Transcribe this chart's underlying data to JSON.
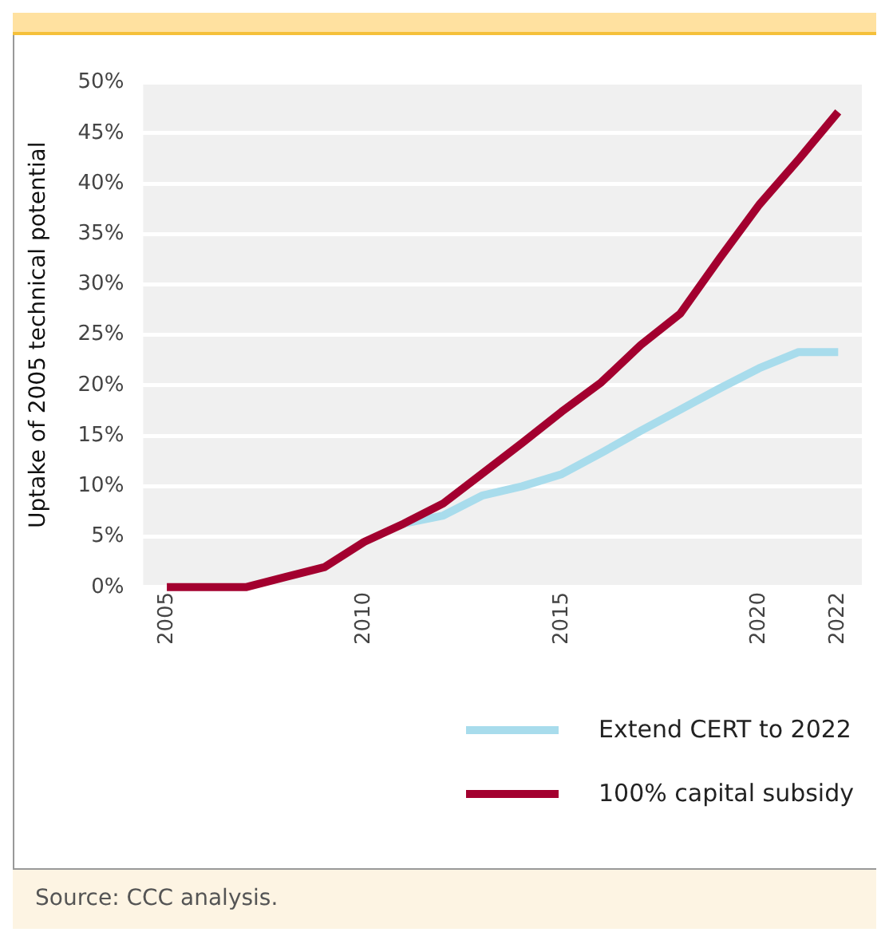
{
  "chart_data": {
    "type": "line",
    "ylabel": "Uptake of 2005 technical potential",
    "xlim": [
      2004.4,
      2022.6
    ],
    "xticks": [
      2005,
      2010,
      2015,
      2020,
      2022
    ],
    "ylim": [
      0,
      50
    ],
    "yticks": [
      {
        "value": 0,
        "label": "0%"
      },
      {
        "value": 5,
        "label": "5%"
      },
      {
        "value": 10,
        "label": "10%"
      },
      {
        "value": 15,
        "label": "15%"
      },
      {
        "value": 20,
        "label": "20%"
      },
      {
        "value": 25,
        "label": "25%"
      },
      {
        "value": 30,
        "label": "30%"
      },
      {
        "value": 35,
        "label": "35%"
      },
      {
        "value": 40,
        "label": "40%"
      },
      {
        "value": 45,
        "label": "45%"
      },
      {
        "value": 50,
        "label": "50%"
      }
    ],
    "grid": "y",
    "legend": "bottom right",
    "line_style": "solid",
    "marker": "none",
    "x": [
      2005,
      2006,
      2007,
      2008,
      2009,
      2010,
      2011,
      2012,
      2013,
      2014,
      2015,
      2016,
      2017,
      2018,
      2019,
      2020,
      2021,
      2022
    ],
    "series": [
      {
        "name": "Extend CERT to 2022",
        "color": "#a8dcec",
        "values": [
          null,
          null,
          null,
          null,
          null,
          null,
          6.3,
          7.1,
          9.1,
          10,
          11.2,
          13.3,
          15.5,
          17.6,
          19.7,
          21.7,
          23.3,
          23.3
        ]
      },
      {
        "name": "100% capital subsidy",
        "color": "#a3002f",
        "values": [
          0,
          0,
          0,
          1,
          2,
          4.5,
          6.3,
          8.3,
          11.3,
          14.3,
          17.4,
          20.3,
          24,
          27.1,
          32.6,
          37.9,
          42.4,
          47.1
        ]
      }
    ],
    "annotations": [
      "Source: CCC analysis."
    ]
  }
}
